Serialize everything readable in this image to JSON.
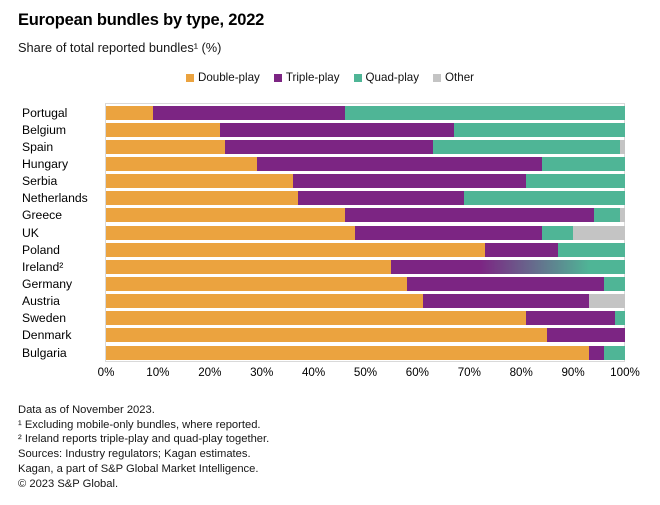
{
  "header": {
    "title": "European bundles by type, 2022",
    "subtitle": "Share of total reported bundles¹ (%)"
  },
  "colors": {
    "double_play": "#EBA33F",
    "triple_play": "#7C2583",
    "quad_play": "#4FB596",
    "other": "#C4C4C4",
    "plot_border": "#D9D9D9"
  },
  "chart_data": {
    "type": "bar",
    "orientation": "horizontal",
    "stacked": true,
    "grid": false,
    "legend_position": "top-center",
    "xlim": [
      0,
      100
    ],
    "x_ticks": [
      "0%",
      "10%",
      "20%",
      "30%",
      "40%",
      "50%",
      "60%",
      "70%",
      "80%",
      "90%",
      "100%"
    ],
    "categories": [
      "Portugal",
      "Belgium",
      "Spain",
      "Hungary",
      "Serbia",
      "Netherlands",
      "Greece",
      "UK",
      "Poland",
      "Ireland²",
      "Germany",
      "Austria",
      "Sweden",
      "Denmark",
      "Bulgaria"
    ],
    "series": [
      {
        "name": "Double-play",
        "color": "#EBA33F",
        "values": [
          9,
          22,
          23,
          29,
          36,
          37,
          46,
          48,
          73,
          55,
          58,
          61,
          81,
          85,
          93
        ]
      },
      {
        "name": "Triple-play",
        "color": "#7C2583",
        "values": [
          37,
          45,
          40,
          55,
          45,
          32,
          48,
          36,
          14,
          45,
          38,
          32,
          17,
          15,
          3
        ]
      },
      {
        "name": "Quad-play",
        "color": "#4FB596",
        "values": [
          54,
          33,
          36,
          16,
          19,
          31,
          5,
          6,
          13,
          0,
          4,
          0,
          2,
          0,
          4
        ]
      },
      {
        "name": "Other",
        "color": "#C4C4C4",
        "values": [
          0,
          0,
          1,
          0,
          0,
          0,
          1,
          10,
          0,
          0,
          0,
          7,
          0,
          0,
          0
        ]
      }
    ],
    "combined_segment": {
      "category": "Ireland²",
      "series_name": "Triple-play",
      "combines": [
        "Triple-play",
        "Quad-play"
      ],
      "total": 45,
      "css_gradient": "linear-gradient(90deg, #7C2583 0%, #7C2583 38%, #4FB596 85%, #4FB596 100%)"
    }
  },
  "footnotes": [
    "Data as of November 2023.",
    "¹ Excluding mobile-only bundles, where reported.",
    "² Ireland reports triple-play and quad-play together.",
    "Sources: Industry regulators; Kagan estimates.",
    "Kagan, a part of S&P Global Market Intelligence.",
    "© 2023 S&P Global."
  ]
}
